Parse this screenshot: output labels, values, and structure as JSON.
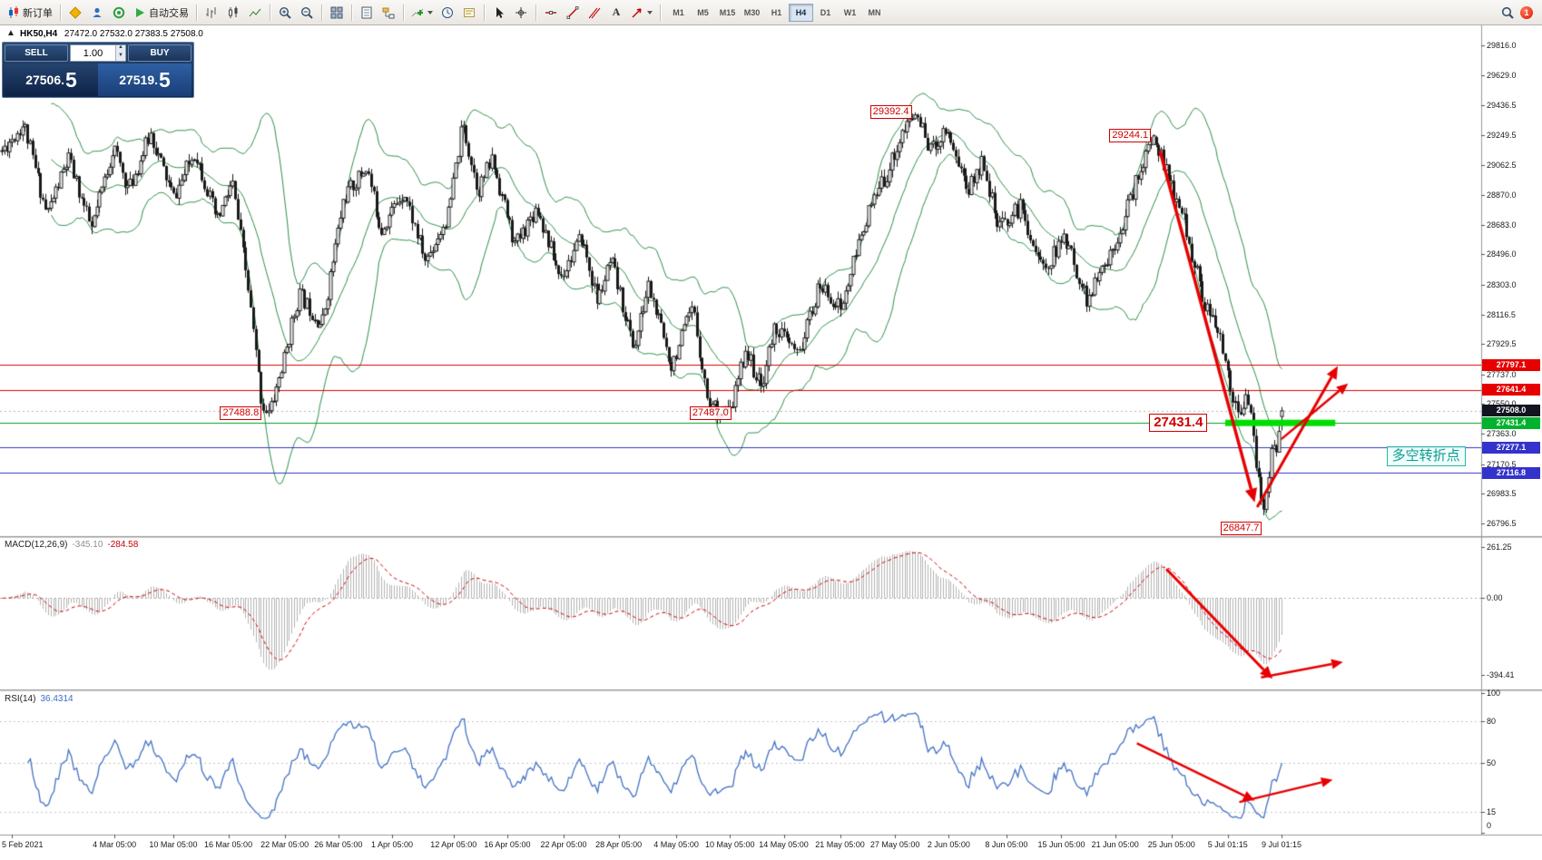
{
  "toolbar": {
    "new_order_label": "新订单",
    "autotrading_label": "自动交易",
    "timeframes": [
      "M1",
      "M5",
      "M15",
      "M30",
      "H1",
      "H4",
      "D1",
      "W1",
      "MN"
    ],
    "active_timeframe": "H4",
    "notification_count": "1"
  },
  "symbol_header": {
    "symbol_period": "HK50,H4",
    "ohlc": "27472.0 27532.0 27383.5 27508.0"
  },
  "trade_panel": {
    "sell_label": "SELL",
    "buy_label": "BUY",
    "volume": "1.00",
    "sell_price_main": "27506.",
    "sell_price_frac": "5",
    "buy_price_main": "27519.",
    "buy_price_frac": "5"
  },
  "colors": {
    "band_green": "#2e9149",
    "bull_body": "#ffffff",
    "bear_body": "#1a1a1a",
    "resistance_red": "#e60000",
    "support_blue": "#3333cc",
    "pivot_green": "#00a028",
    "zone_green": "#00dd00",
    "arrow_red": "#e80000",
    "macd_histogram": "#b4b4b4",
    "macd_signal": "#d00000",
    "rsi_line": "#4272c4",
    "current_tag_bg": "#12141f"
  },
  "chart_data": {
    "type": "candlestick",
    "symbol": "HK50",
    "period": "H4",
    "last_candle": {
      "open": 27472.0,
      "high": 27532.0,
      "low": 27383.5,
      "close": 27508.0
    },
    "candle_count": 500,
    "price_axis_ticks": [
      29816.0,
      29629.0,
      29436.5,
      29249.5,
      29062.5,
      28870.0,
      28683.0,
      28496.0,
      28303.0,
      28116.5,
      27929.5,
      27737.0,
      27550.0,
      27363.0,
      27170.5,
      26983.5,
      26796.5
    ],
    "price_axis_range": [
      26796.5,
      29816.0
    ],
    "time_axis": [
      {
        "label": "5 Feb 2021",
        "t": 0.008
      },
      {
        "label": "4 Mar 05:00",
        "t": 0.088
      },
      {
        "label": "10 Mar 05:00",
        "t": 0.134
      },
      {
        "label": "16 Mar 05:00",
        "t": 0.177
      },
      {
        "label": "22 Mar 05:00",
        "t": 0.221
      },
      {
        "label": "26 Mar 05:00",
        "t": 0.263
      },
      {
        "label": "1 Apr 05:00",
        "t": 0.305
      },
      {
        "label": "12 Apr 05:00",
        "t": 0.353
      },
      {
        "label": "16 Apr 05:00",
        "t": 0.395
      },
      {
        "label": "22 Apr 05:00",
        "t": 0.439
      },
      {
        "label": "28 Apr 05:00",
        "t": 0.482
      },
      {
        "label": "4 May 05:00",
        "t": 0.527
      },
      {
        "label": "10 May 05:00",
        "t": 0.569
      },
      {
        "label": "14 May 05:00",
        "t": 0.611
      },
      {
        "label": "21 May 05:00",
        "t": 0.655
      },
      {
        "label": "27 May 05:00",
        "t": 0.698
      },
      {
        "label": "2 Jun 05:00",
        "t": 0.74
      },
      {
        "label": "8 Jun 05:00",
        "t": 0.785
      },
      {
        "label": "15 Jun 05:00",
        "t": 0.828
      },
      {
        "label": "21 Jun 05:00",
        "t": 0.87
      },
      {
        "label": "25 Jun 05:00",
        "t": 0.914
      },
      {
        "label": "5 Jul 01:15",
        "t": 0.958
      },
      {
        "label": "9 Jul 01:15",
        "t": 1.0
      }
    ],
    "price_path": [
      [
        0,
        29150
      ],
      [
        0.017,
        29320
      ],
      [
        0.035,
        28750
      ],
      [
        0.052,
        29100
      ],
      [
        0.07,
        28650
      ],
      [
        0.087,
        29180
      ],
      [
        0.099,
        28900
      ],
      [
        0.116,
        29260
      ],
      [
        0.134,
        28850
      ],
      [
        0.151,
        29150
      ],
      [
        0.168,
        28700
      ],
      [
        0.18,
        28950
      ],
      [
        0.192,
        28300
      ],
      [
        0.203,
        27550
      ],
      [
        0.209,
        27490
      ],
      [
        0.221,
        27850
      ],
      [
        0.232,
        28250
      ],
      [
        0.25,
        28050
      ],
      [
        0.267,
        28850
      ],
      [
        0.285,
        29050
      ],
      [
        0.296,
        28650
      ],
      [
        0.314,
        28900
      ],
      [
        0.331,
        28450
      ],
      [
        0.349,
        28750
      ],
      [
        0.36,
        29320
      ],
      [
        0.372,
        28900
      ],
      [
        0.383,
        29100
      ],
      [
        0.401,
        28550
      ],
      [
        0.418,
        28800
      ],
      [
        0.436,
        28350
      ],
      [
        0.453,
        28600
      ],
      [
        0.465,
        28200
      ],
      [
        0.476,
        28450
      ],
      [
        0.494,
        27900
      ],
      [
        0.505,
        28300
      ],
      [
        0.523,
        27800
      ],
      [
        0.54,
        28150
      ],
      [
        0.552,
        27550
      ],
      [
        0.569,
        27490
      ],
      [
        0.581,
        27900
      ],
      [
        0.593,
        27650
      ],
      [
        0.604,
        28050
      ],
      [
        0.622,
        27850
      ],
      [
        0.639,
        28300
      ],
      [
        0.656,
        28150
      ],
      [
        0.674,
        28700
      ],
      [
        0.691,
        29000
      ],
      [
        0.703,
        29250
      ],
      [
        0.714,
        29392
      ],
      [
        0.726,
        29150
      ],
      [
        0.738,
        29300
      ],
      [
        0.755,
        28900
      ],
      [
        0.767,
        29100
      ],
      [
        0.778,
        28650
      ],
      [
        0.796,
        28800
      ],
      [
        0.813,
        28400
      ],
      [
        0.831,
        28600
      ],
      [
        0.848,
        28200
      ],
      [
        0.866,
        28500
      ],
      [
        0.878,
        28750
      ],
      [
        0.89,
        29050
      ],
      [
        0.901,
        29244
      ],
      [
        0.912,
        28950
      ],
      [
        0.924,
        28700
      ],
      [
        0.939,
        28200
      ],
      [
        0.954,
        27900
      ],
      [
        0.966,
        27450
      ],
      [
        0.973,
        27650
      ],
      [
        0.981,
        27100
      ],
      [
        0.985,
        26870
      ],
      [
        0.99,
        27100
      ],
      [
        0.993,
        27350
      ],
      [
        0.996,
        27250
      ],
      [
        1,
        27508
      ]
    ],
    "snap_points": [
      [
        0.206,
        "low",
        27488.8
      ],
      [
        0.569,
        "low",
        27487.0
      ],
      [
        0.985,
        "low",
        26847.7
      ],
      [
        0.714,
        "high",
        29392.4
      ],
      [
        0.901,
        "high",
        29244.1
      ]
    ],
    "bollinger": {
      "period": 20,
      "deviation": 2
    },
    "swing_labels": [
      {
        "text": "29392.4",
        "t": 0.714,
        "price": 29392.4,
        "pos": "left"
      },
      {
        "text": "29244.1",
        "t": 0.901,
        "price": 29244.1,
        "pos": "left"
      },
      {
        "text": "27488.8",
        "t": 0.206,
        "price": 27488.8,
        "pos": "left"
      },
      {
        "text": "27487.0",
        "t": 0.573,
        "price": 27487.0,
        "pos": "left"
      },
      {
        "text": "26847.7",
        "t": 0.982,
        "price": 26847.7,
        "pos": "below"
      }
    ],
    "pivot_label": {
      "text": "27431.4",
      "t_right": 0.942,
      "price": 27431.4
    },
    "annotation": {
      "text": "多空转折点",
      "t": 1.082,
      "price": 27225
    },
    "levels": [
      {
        "price": 27797.1,
        "color": "#e60000",
        "tag": "27797.1",
        "tag_bg": "#e60000"
      },
      {
        "price": 27641.4,
        "color": "#e60000",
        "tag": "27641.4",
        "tag_bg": "#e60000"
      },
      {
        "price": 27431.4,
        "color": "#00a028",
        "tag": "27431.4",
        "tag_bg": "#00b22d"
      },
      {
        "price": 27277.1,
        "color": "#3333cc",
        "tag": "27277.1",
        "tag_bg": "#3333cc"
      },
      {
        "price": 27116.8,
        "color": "#3333cc",
        "tag": "27116.8",
        "tag_bg": "#3333cc"
      }
    ],
    "current_price_tag": {
      "price": 27508.0,
      "tag": "27508.0",
      "tag_bg": "#12141f"
    },
    "green_zone": {
      "price": 27431.4,
      "t1": 0.956,
      "t2": 1.042,
      "thickness": 7
    },
    "arrows": [
      {
        "panel": "main",
        "from": [
          0.905,
          29150
        ],
        "to": [
          0.979,
          26930
        ],
        "w": 3.5
      },
      {
        "panel": "main",
        "from": [
          0.981,
          26900
        ],
        "to": [
          1.044,
          27790
        ],
        "w": 3
      },
      {
        "panel": "main",
        "from": [
          1.0,
          27330
        ],
        "to": [
          1.052,
          27680
        ],
        "w": 2.5
      },
      {
        "panel": "macd",
        "from": [
          0.91,
          150
        ],
        "to": [
          0.993,
          -415
        ],
        "w": 3
      },
      {
        "panel": "macd",
        "from": [
          0.984,
          -408
        ],
        "to": [
          1.048,
          -328
        ],
        "w": 2.5
      },
      {
        "panel": "rsi",
        "from": [
          0.887,
          64
        ],
        "to": [
          0.979,
          23
        ],
        "w": 2.5
      },
      {
        "panel": "rsi",
        "from": [
          0.967,
          22
        ],
        "to": [
          1.04,
          38
        ],
        "w": 2.5
      }
    ],
    "indicators": {
      "macd": {
        "name": "MACD(12,26,9)",
        "fast": 12,
        "slow": 26,
        "signal": 9,
        "value": "-345.10",
        "signal_value": "-284.58",
        "scale_ticks": [
          261.25,
          0.0,
          -394.41
        ],
        "display_range": [
          -460,
          305
        ]
      },
      "rsi": {
        "name": "RSI(14)",
        "period": 14,
        "value": "36.4314",
        "scale_ticks": [
          100,
          80,
          50,
          15,
          0
        ],
        "display_range": [
          0,
          100
        ],
        "level_lines": [
          80,
          50,
          15
        ]
      }
    }
  }
}
